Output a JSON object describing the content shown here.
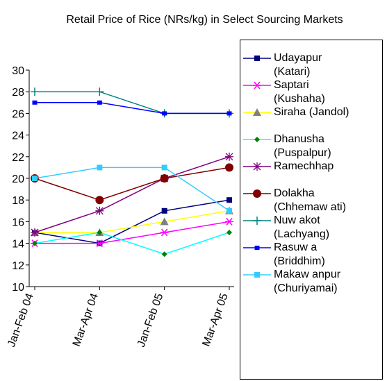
{
  "chart_data": {
    "type": "line",
    "title": "Retail Price of Rice (NRs/kg) in Select Sourcing Markets",
    "categories": [
      "Jan-Feb 04",
      "Mar-Apr 04",
      "Jan-Feb 05",
      "Mar-Apr 05"
    ],
    "ylim": [
      10,
      30
    ],
    "yticks": [
      10,
      12,
      14,
      16,
      18,
      20,
      22,
      24,
      26,
      28,
      30
    ],
    "legend": "right",
    "series": [
      {
        "name": "Udayapur (Katari)",
        "color": "#000080",
        "marker": "square",
        "marker_color": "#000080",
        "values": [
          15,
          14,
          17,
          18
        ]
      },
      {
        "name": "Saptari (Kushaha)",
        "color": "#ff00ff",
        "marker": "asterisk",
        "marker_color": "#ff00ff",
        "values": [
          14,
          14,
          15,
          16
        ]
      },
      {
        "name": "Siraha (Jandol)",
        "color": "#ffff00",
        "marker": "triangle",
        "marker_color": "#808080",
        "values": [
          15,
          15,
          16,
          17
        ]
      },
      {
        "name": "Dhanusha (Puspalpur)",
        "color": "#00ffff",
        "marker": "diamond",
        "marker_color": "#008000",
        "values": [
          14,
          15,
          13,
          15
        ]
      },
      {
        "name": "Ramechhap",
        "color": "#800080",
        "marker": "star",
        "marker_color": "#800080",
        "values": [
          15,
          17,
          20,
          22
        ]
      },
      {
        "name": "Dolakha (Chhemaw ati)",
        "color": "#800000",
        "marker": "circle",
        "marker_color": "#800000",
        "values": [
          20,
          18,
          20,
          21
        ]
      },
      {
        "name": "Nuw akot (Lachyang)",
        "color": "#008080",
        "marker": "plus",
        "marker_color": "#008080",
        "values": [
          28,
          28,
          26,
          26
        ]
      },
      {
        "name": "Rasuw a (Briddhim)",
        "color": "#0000ff",
        "marker": "smallsquare",
        "marker_color": "#0000ff",
        "values": [
          27,
          27,
          26,
          26
        ]
      },
      {
        "name": "Makaw anpur (Churiyamai)",
        "color": "#33ccff",
        "marker": "square",
        "marker_color": "#33ccff",
        "values": [
          20,
          21,
          21,
          17
        ]
      }
    ]
  }
}
